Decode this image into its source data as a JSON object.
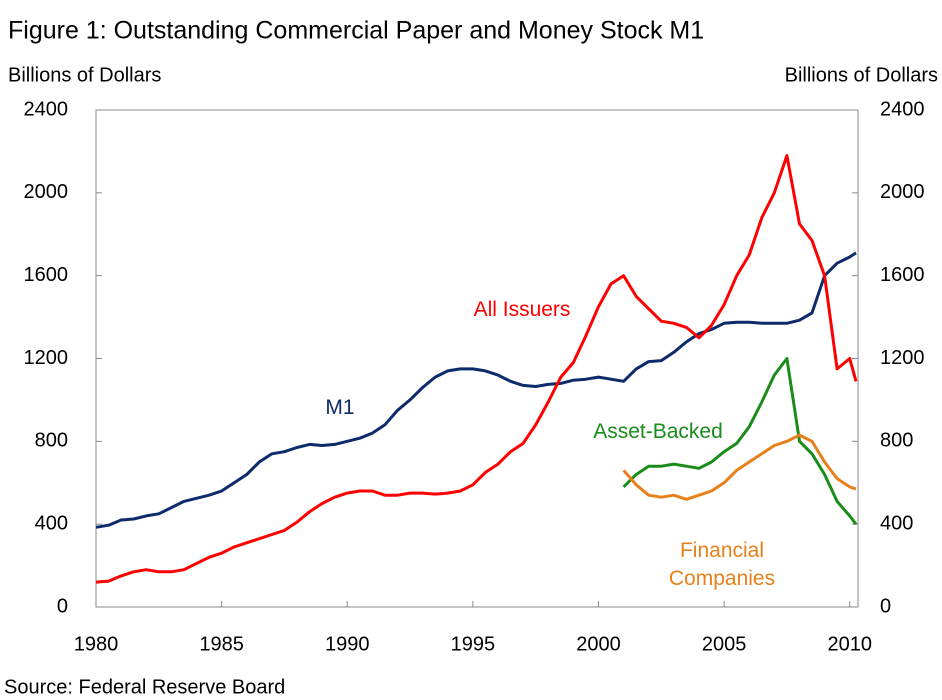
{
  "chart_data": {
    "type": "line",
    "title": "Figure 1: Outstanding Commercial Paper and Money Stock M1",
    "y_label": "Billions of Dollars",
    "y2_label": "Billions of Dollars",
    "source": "Source: Federal Reserve Board",
    "x": [
      1980,
      1980.5,
      1981,
      1981.5,
      1982,
      1982.5,
      1983,
      1983.5,
      1984,
      1984.5,
      1985,
      1985.5,
      1986,
      1986.5,
      1987,
      1987.5,
      1988,
      1988.5,
      1989,
      1989.5,
      1990,
      1990.5,
      1991,
      1991.5,
      1992,
      1992.5,
      1993,
      1993.5,
      1994,
      1994.5,
      1995,
      1995.5,
      1996,
      1996.5,
      1997,
      1997.5,
      1998,
      1998.5,
      1999,
      1999.5,
      2000,
      2000.5,
      2001,
      2001.5,
      2002,
      2002.5,
      2003,
      2003.5,
      2004,
      2004.5,
      2005,
      2005.5,
      2006,
      2006.5,
      2007,
      2007.5,
      2008,
      2008.5,
      2009,
      2009.5,
      2010,
      2010.25
    ],
    "series": [
      {
        "name": "M1",
        "color": "#0d2a6b",
        "values": [
          385,
          395,
          420,
          425,
          440,
          450,
          480,
          510,
          525,
          540,
          560,
          600,
          640,
          700,
          740,
          750,
          770,
          785,
          780,
          785,
          800,
          815,
          840,
          880,
          950,
          1000,
          1060,
          1110,
          1140,
          1150,
          1150,
          1140,
          1120,
          1090,
          1070,
          1065,
          1075,
          1080,
          1095,
          1100,
          1110,
          1100,
          1090,
          1150,
          1185,
          1190,
          1230,
          1280,
          1320,
          1340,
          1370,
          1375,
          1375,
          1370,
          1370,
          1370,
          1385,
          1420,
          1600,
          1660,
          1690,
          1710
        ]
      },
      {
        "name": "All Issuers",
        "color": "#ff0000",
        "values": [
          120,
          125,
          150,
          170,
          180,
          170,
          170,
          180,
          210,
          240,
          260,
          290,
          310,
          330,
          350,
          370,
          410,
          460,
          500,
          530,
          550,
          560,
          560,
          540,
          540,
          550,
          550,
          545,
          550,
          560,
          590,
          650,
          690,
          750,
          790,
          880,
          990,
          1110,
          1180,
          1310,
          1450,
          1560,
          1600,
          1500,
          1440,
          1380,
          1370,
          1350,
          1300,
          1360,
          1460,
          1600,
          1700,
          1880,
          2000,
          2180,
          1850,
          1770,
          1600,
          1150,
          1200,
          1090
        ]
      },
      {
        "name": "Asset-Backed",
        "color": "#1a8c1a",
        "values": [
          null,
          null,
          null,
          null,
          null,
          null,
          null,
          null,
          null,
          null,
          null,
          null,
          null,
          null,
          null,
          null,
          null,
          null,
          null,
          null,
          null,
          null,
          null,
          null,
          null,
          null,
          null,
          null,
          null,
          null,
          null,
          null,
          null,
          null,
          null,
          null,
          null,
          null,
          null,
          null,
          null,
          null,
          580,
          640,
          680,
          680,
          690,
          680,
          670,
          700,
          750,
          790,
          870,
          990,
          1120,
          1200,
          800,
          740,
          640,
          510,
          440,
          400
        ]
      },
      {
        "name": "Financial Companies",
        "color": "#e8801a",
        "values": [
          null,
          null,
          null,
          null,
          null,
          null,
          null,
          null,
          null,
          null,
          null,
          null,
          null,
          null,
          null,
          null,
          null,
          null,
          null,
          null,
          null,
          null,
          null,
          null,
          null,
          null,
          null,
          null,
          null,
          null,
          null,
          null,
          null,
          null,
          null,
          null,
          null,
          null,
          null,
          null,
          null,
          null,
          660,
          590,
          540,
          530,
          540,
          520,
          540,
          560,
          600,
          660,
          700,
          740,
          780,
          800,
          830,
          800,
          700,
          620,
          580,
          570
        ]
      }
    ],
    "xlim": [
      1980,
      2010.33
    ],
    "xticks": [
      1980,
      1985,
      1990,
      1995,
      2000,
      2005,
      2010
    ],
    "ylim": [
      0,
      2400
    ],
    "yticks": [
      0,
      400,
      800,
      1200,
      1600,
      2000,
      2400
    ],
    "y2lim": [
      0,
      2400
    ],
    "y2ticks": [
      0,
      400,
      800,
      1200,
      1600,
      2000,
      2400
    ]
  }
}
